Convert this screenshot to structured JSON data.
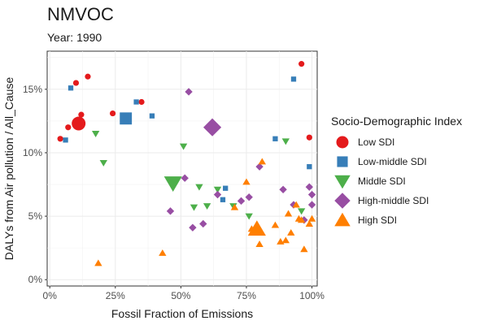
{
  "chart_data": {
    "type": "scatter",
    "title": "NMVOC",
    "subtitle": "Year: 1990",
    "xlabel": "Fossil Fraction of Emissions",
    "ylabel": "DALYs from Air pollution / All_Cause",
    "xlim": [
      -0.01,
      1.02
    ],
    "ylim": [
      -0.005,
      0.18
    ],
    "x_ticks": [
      0,
      0.25,
      0.5,
      0.75,
      1.0
    ],
    "x_tick_labels": [
      "0%",
      "25%",
      "50%",
      "75%",
      "100%"
    ],
    "y_ticks": [
      0,
      0.05,
      0.1,
      0.15
    ],
    "y_tick_labels": [
      "0%",
      "5%",
      "10%",
      "15%"
    ],
    "grid": true,
    "legend_position": "right",
    "legend_title": "Socio-Demographic Index",
    "series": [
      {
        "name": "Low SDI",
        "color": "#E41A1C",
        "shape": "circle",
        "points": [
          {
            "x": 0.04,
            "y": 0.111
          },
          {
            "x": 0.07,
            "y": 0.12
          },
          {
            "x": 0.1,
            "y": 0.155
          },
          {
            "x": 0.11,
            "y": 0.123,
            "size": "large"
          },
          {
            "x": 0.12,
            "y": 0.13
          },
          {
            "x": 0.145,
            "y": 0.16
          },
          {
            "x": 0.24,
            "y": 0.131
          },
          {
            "x": 0.35,
            "y": 0.14
          },
          {
            "x": 0.96,
            "y": 0.17
          },
          {
            "x": 0.99,
            "y": 0.112
          }
        ]
      },
      {
        "name": "Low-middle SDI",
        "color": "#377EB8",
        "shape": "square",
        "points": [
          {
            "x": 0.06,
            "y": 0.11
          },
          {
            "x": 0.08,
            "y": 0.151
          },
          {
            "x": 0.29,
            "y": 0.127,
            "size": "large"
          },
          {
            "x": 0.33,
            "y": 0.14
          },
          {
            "x": 0.39,
            "y": 0.129
          },
          {
            "x": 0.66,
            "y": 0.063
          },
          {
            "x": 0.67,
            "y": 0.072
          },
          {
            "x": 0.86,
            "y": 0.111
          },
          {
            "x": 0.93,
            "y": 0.158
          },
          {
            "x": 0.99,
            "y": 0.089
          }
        ]
      },
      {
        "name": "Middle SDI",
        "color": "#4DAF4A",
        "shape": "triangle-down",
        "points": [
          {
            "x": 0.175,
            "y": 0.115
          },
          {
            "x": 0.205,
            "y": 0.092
          },
          {
            "x": 0.47,
            "y": 0.076,
            "size": "large"
          },
          {
            "x": 0.51,
            "y": 0.105
          },
          {
            "x": 0.55,
            "y": 0.057
          },
          {
            "x": 0.57,
            "y": 0.073
          },
          {
            "x": 0.6,
            "y": 0.058
          },
          {
            "x": 0.64,
            "y": 0.071
          },
          {
            "x": 0.7,
            "y": 0.058
          },
          {
            "x": 0.76,
            "y": 0.05
          },
          {
            "x": 0.9,
            "y": 0.109
          },
          {
            "x": 0.96,
            "y": 0.054
          }
        ]
      },
      {
        "name": "High-middle SDI",
        "color": "#984EA3",
        "shape": "diamond",
        "points": [
          {
            "x": 0.46,
            "y": 0.054
          },
          {
            "x": 0.515,
            "y": 0.08
          },
          {
            "x": 0.53,
            "y": 0.148
          },
          {
            "x": 0.545,
            "y": 0.041
          },
          {
            "x": 0.585,
            "y": 0.044
          },
          {
            "x": 0.62,
            "y": 0.12,
            "size": "large"
          },
          {
            "x": 0.64,
            "y": 0.067
          },
          {
            "x": 0.73,
            "y": 0.062
          },
          {
            "x": 0.76,
            "y": 0.065
          },
          {
            "x": 0.8,
            "y": 0.089
          },
          {
            "x": 0.89,
            "y": 0.071
          },
          {
            "x": 0.93,
            "y": 0.059
          },
          {
            "x": 0.97,
            "y": 0.047
          },
          {
            "x": 0.99,
            "y": 0.073
          },
          {
            "x": 1.0,
            "y": 0.067
          },
          {
            "x": 1.0,
            "y": 0.059
          }
        ]
      },
      {
        "name": "High SDI",
        "color": "#FF7F00",
        "shape": "triangle-up",
        "points": [
          {
            "x": 0.185,
            "y": 0.013
          },
          {
            "x": 0.43,
            "y": 0.021
          },
          {
            "x": 0.705,
            "y": 0.057
          },
          {
            "x": 0.75,
            "y": 0.077
          },
          {
            "x": 0.77,
            "y": 0.04
          },
          {
            "x": 0.79,
            "y": 0.04,
            "size": "large"
          },
          {
            "x": 0.8,
            "y": 0.028
          },
          {
            "x": 0.81,
            "y": 0.093
          },
          {
            "x": 0.86,
            "y": 0.043
          },
          {
            "x": 0.88,
            "y": 0.03
          },
          {
            "x": 0.9,
            "y": 0.031
          },
          {
            "x": 0.91,
            "y": 0.052
          },
          {
            "x": 0.92,
            "y": 0.037
          },
          {
            "x": 0.94,
            "y": 0.059
          },
          {
            "x": 0.95,
            "y": 0.048
          },
          {
            "x": 0.96,
            "y": 0.047
          },
          {
            "x": 0.97,
            "y": 0.024
          },
          {
            "x": 0.99,
            "y": 0.044
          },
          {
            "x": 1.0,
            "y": 0.048
          }
        ]
      }
    ]
  }
}
